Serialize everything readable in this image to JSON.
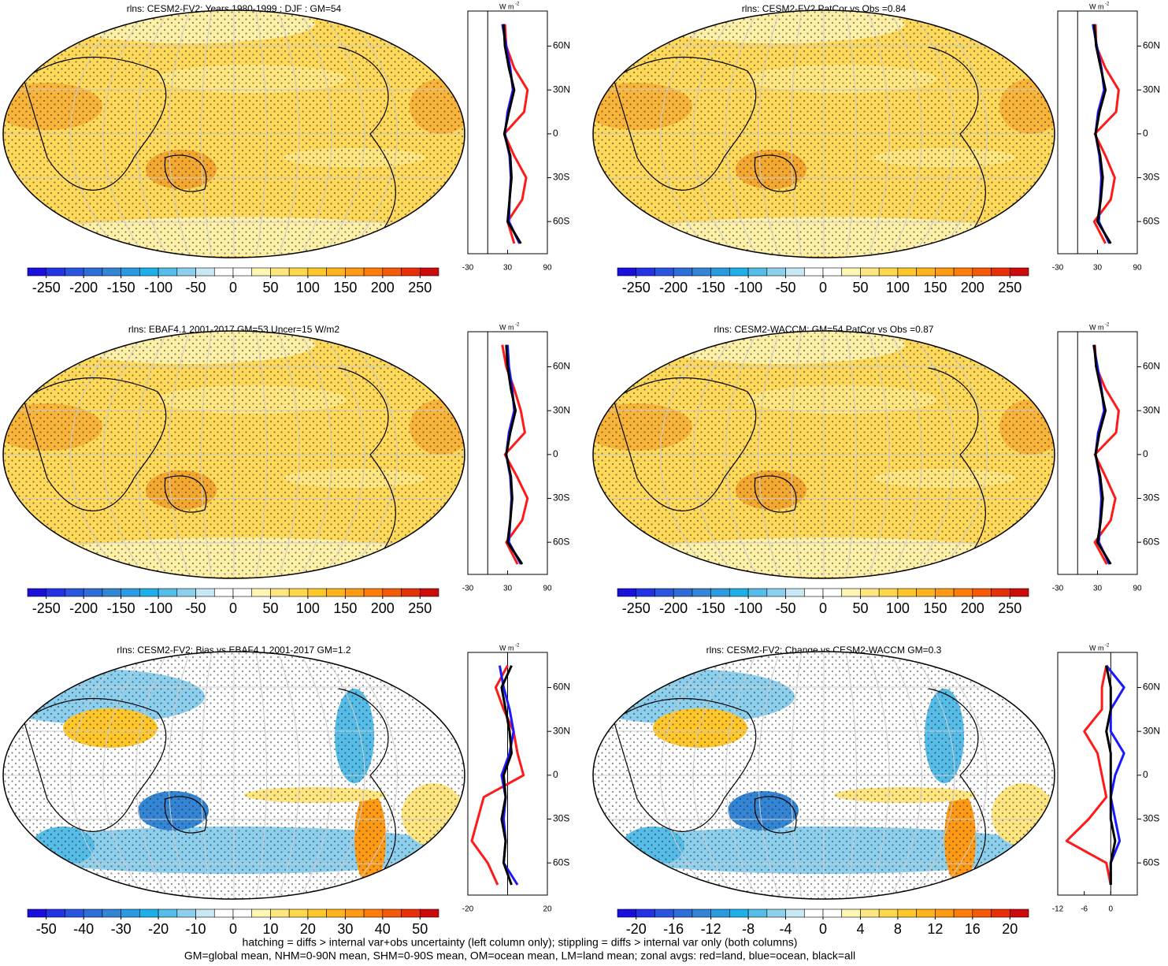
{
  "chart_data": [
    {
      "type": "map",
      "title": "rlns: CESM2-FV2: Years 1980-1999 : DJF : GM=54",
      "colorbar": {
        "lim": [
          -275,
          275
        ],
        "ticks": [
          -250,
          -200,
          -150,
          -100,
          -50,
          0,
          50,
          100,
          150,
          200,
          250
        ],
        "colors": [
          "#1a0fdc",
          "#2233e6",
          "#2a55e0",
          "#2e6ed8",
          "#3385d6",
          "#2a9be0",
          "#1eb0e8",
          "#55bde8",
          "#8cd0ee",
          "#c8e8f6",
          "#ffffff",
          "#ffffff",
          "#fff5b4",
          "#ffe680",
          "#ffd74a",
          "#ffc72a",
          "#ffb41e",
          "#ff9a14",
          "#ff7d0a",
          "#f55a08",
          "#e83008",
          "#cc0a0a"
        ]
      },
      "zonal": {
        "type": "line",
        "unit": "W m",
        "unit_exp": "-2",
        "xlim": [
          -30,
          90
        ],
        "xticks": [
          -30,
          30,
          90
        ],
        "ylim": [
          -82,
          84
        ],
        "yticks": [
          {
            "value": 60,
            "label": "60N"
          },
          {
            "value": 30,
            "label": "30N"
          },
          0,
          {
            "value": -30,
            "label": "30S"
          },
          {
            "value": -60,
            "label": "60S"
          }
        ],
        "lat": [
          -75,
          -60,
          -45,
          -30,
          -15,
          0,
          15,
          30,
          45,
          60,
          75
        ],
        "series": [
          {
            "name": "land",
            "color": "#ff1a1a",
            "values": [
              40,
              30,
              52,
              58,
              40,
              25,
              55,
              60,
              40,
              28,
              26
            ]
          },
          {
            "name": "ocean",
            "color": "#1a1aff",
            "values": [
              48,
              32,
              33,
              35,
              33,
              26,
              30,
              38,
              34,
              28,
              22
            ]
          },
          {
            "name": "all",
            "color": "#000000",
            "values": [
              50,
              30,
              33,
              36,
              34,
              25,
              32,
              40,
              32,
              26,
              24
            ]
          }
        ]
      }
    },
    {
      "type": "map",
      "title": "rlns: CESM2-FV2 PatCor vs Obs =0.84",
      "colorbar": {
        "lim": [
          -275,
          275
        ],
        "ticks": [
          -250,
          -200,
          -150,
          -100,
          -50,
          0,
          50,
          100,
          150,
          200,
          250
        ],
        "colors": [
          "#1a0fdc",
          "#2233e6",
          "#2a55e0",
          "#2e6ed8",
          "#3385d6",
          "#2a9be0",
          "#1eb0e8",
          "#55bde8",
          "#8cd0ee",
          "#c8e8f6",
          "#ffffff",
          "#ffffff",
          "#fff5b4",
          "#ffe680",
          "#ffd74a",
          "#ffc72a",
          "#ffb41e",
          "#ff9a14",
          "#ff7d0a",
          "#f55a08",
          "#e83008",
          "#cc0a0a"
        ]
      },
      "zonal": {
        "type": "line",
        "unit": "W m",
        "unit_exp": "-2",
        "xlim": [
          -30,
          90
        ],
        "xticks": [
          -30,
          30,
          90
        ],
        "ylim": [
          -82,
          84
        ],
        "yticks": [
          {
            "value": 60,
            "label": "60N"
          },
          {
            "value": 30,
            "label": "30N"
          },
          0,
          {
            "value": -30,
            "label": "30S"
          },
          {
            "value": -60,
            "label": "60S"
          }
        ],
        "lat": [
          -75,
          -60,
          -45,
          -30,
          -15,
          0,
          15,
          30,
          45,
          60,
          75
        ],
        "series": [
          {
            "name": "land",
            "color": "#ff1a1a",
            "values": [
              42,
              25,
              50,
              56,
              42,
              26,
              58,
              62,
              42,
              28,
              27
            ]
          },
          {
            "name": "ocean",
            "color": "#1a1aff",
            "values": [
              48,
              32,
              34,
              36,
              33,
              27,
              31,
              40,
              36,
              29,
              23
            ]
          },
          {
            "name": "all",
            "color": "#000000",
            "values": [
              50,
              30,
              35,
              38,
              34,
              27,
              33,
              42,
              35,
              28,
              25
            ]
          }
        ]
      }
    },
    {
      "type": "map",
      "title": "rlns: EBAF4.1 2001-2017 GM=53 Uncer=15 W/m2",
      "colorbar": {
        "lim": [
          -275,
          275
        ],
        "ticks": [
          -250,
          -200,
          -150,
          -100,
          -50,
          0,
          50,
          100,
          150,
          200,
          250
        ],
        "colors": [
          "#1a0fdc",
          "#2233e6",
          "#2a55e0",
          "#2e6ed8",
          "#3385d6",
          "#2a9be0",
          "#1eb0e8",
          "#55bde8",
          "#8cd0ee",
          "#c8e8f6",
          "#ffffff",
          "#ffffff",
          "#fff5b4",
          "#ffe680",
          "#ffd74a",
          "#ffc72a",
          "#ffb41e",
          "#ff9a14",
          "#ff7d0a",
          "#f55a08",
          "#e83008",
          "#cc0a0a"
        ]
      },
      "zonal": {
        "type": "line",
        "unit": "W m",
        "unit_exp": "-2",
        "xlim": [
          -30,
          90
        ],
        "xticks": [
          -30,
          30,
          90
        ],
        "ylim": [
          -82,
          84
        ],
        "yticks": [
          {
            "value": 60,
            "label": "60N"
          },
          {
            "value": 30,
            "label": "30N"
          },
          0,
          {
            "value": -30,
            "label": "30S"
          },
          {
            "value": -60,
            "label": "60S"
          }
        ],
        "lat": [
          -75,
          -60,
          -45,
          -30,
          -15,
          0,
          15,
          30,
          45,
          60,
          75
        ],
        "series": [
          {
            "name": "land",
            "color": "#ff1a1a",
            "values": [
              45,
              28,
              52,
              60,
              44,
              26,
              56,
              50,
              40,
              28,
              22
            ]
          },
          {
            "name": "ocean",
            "color": "#1a1aff",
            "values": [
              50,
              32,
              34,
              36,
              34,
              28,
              32,
              40,
              37,
              32,
              30
            ]
          },
          {
            "name": "all",
            "color": "#000000",
            "values": [
              52,
              30,
              34,
              37,
              35,
              28,
              34,
              42,
              35,
              30,
              28
            ]
          }
        ]
      }
    },
    {
      "type": "map",
      "title": "rlns: CESM2-WACCM: GM=54 PatCor vs Obs =0.87",
      "colorbar": {
        "lim": [
          -275,
          275
        ],
        "ticks": [
          -250,
          -200,
          -150,
          -100,
          -50,
          0,
          50,
          100,
          150,
          200,
          250
        ],
        "colors": [
          "#1a0fdc",
          "#2233e6",
          "#2a55e0",
          "#2e6ed8",
          "#3385d6",
          "#2a9be0",
          "#1eb0e8",
          "#55bde8",
          "#8cd0ee",
          "#c8e8f6",
          "#ffffff",
          "#ffffff",
          "#fff5b4",
          "#ffe680",
          "#ffd74a",
          "#ffc72a",
          "#ffb41e",
          "#ff9a14",
          "#ff7d0a",
          "#f55a08",
          "#e83008",
          "#cc0a0a"
        ]
      },
      "zonal": {
        "type": "line",
        "unit": "W m",
        "unit_exp": "-2",
        "xlim": [
          -30,
          90
        ],
        "xticks": [
          -30,
          30,
          90
        ],
        "ylim": [
          -82,
          84
        ],
        "yticks": [
          {
            "value": 60,
            "label": "60N"
          },
          {
            "value": 30,
            "label": "30N"
          },
          0,
          {
            "value": -30,
            "label": "30S"
          },
          {
            "value": -60,
            "label": "60S"
          }
        ],
        "lat": [
          -75,
          -60,
          -45,
          -30,
          -15,
          0,
          15,
          30,
          45,
          60,
          75
        ],
        "series": [
          {
            "name": "land",
            "color": "#ff1a1a",
            "values": [
              44,
              26,
              50,
              57,
              42,
              26,
              58,
              62,
              42,
              28,
              26
            ]
          },
          {
            "name": "ocean",
            "color": "#1a1aff",
            "values": [
              48,
              32,
              34,
              36,
              33,
              27,
              31,
              40,
              36,
              30,
              24
            ]
          },
          {
            "name": "all",
            "color": "#000000",
            "values": [
              50,
              30,
              35,
              38,
              34,
              27,
              33,
              42,
              35,
              28,
              25
            ]
          }
        ]
      }
    },
    {
      "type": "map",
      "title": "rlns: CESM2-FV2: Bias vs EBAF4.1 2001-2017 GM=1.2",
      "colorbar": {
        "lim": [
          -55,
          55
        ],
        "ticks": [
          -50,
          -40,
          -30,
          -20,
          -10,
          0,
          10,
          20,
          30,
          40,
          50
        ],
        "colors": [
          "#1a0fdc",
          "#2233e6",
          "#2a55e0",
          "#2e6ed8",
          "#3385d6",
          "#2a9be0",
          "#1eb0e8",
          "#55bde8",
          "#8cd0ee",
          "#c8e8f6",
          "#ffffff",
          "#ffffff",
          "#fff5b4",
          "#ffe680",
          "#ffd74a",
          "#ffc72a",
          "#ffb41e",
          "#ff9a14",
          "#ff7d0a",
          "#f55a08",
          "#e83008",
          "#cc0a0a"
        ]
      },
      "zonal": {
        "type": "line",
        "unit": "W m",
        "unit_exp": "-2",
        "xlim": [
          -20,
          20
        ],
        "xticks": [
          -20,
          20
        ],
        "ylim": [
          -82,
          84
        ],
        "yticks": [
          {
            "value": 60,
            "label": "60N"
          },
          {
            "value": 30,
            "label": "30N"
          },
          0,
          {
            "value": -30,
            "label": "30S"
          },
          {
            "value": -60,
            "label": "60S"
          }
        ],
        "lat": [
          -75,
          -60,
          -45,
          -30,
          -15,
          0,
          15,
          30,
          45,
          60,
          75
        ],
        "series": [
          {
            "name": "land",
            "color": "#ff1a1a",
            "values": [
              -5,
              -10,
              -18,
              -15,
              -12,
              8,
              5,
              3,
              -2,
              -6,
              0
            ]
          },
          {
            "name": "ocean",
            "color": "#1a1aff",
            "values": [
              5,
              -2,
              -1,
              -2,
              -1,
              -3,
              1,
              3,
              1,
              -2,
              -4
            ]
          },
          {
            "name": "all",
            "color": "#000000",
            "values": [
              2,
              -2,
              -1,
              -3,
              -1,
              -2,
              2,
              1,
              -1,
              -3,
              2
            ]
          }
        ]
      }
    },
    {
      "type": "map",
      "title": "rlns: CESM2-FV2: Change vs CESM2-WACCM GM=0.3",
      "colorbar": {
        "lim": [
          -22,
          22
        ],
        "ticks": [
          -20,
          -16,
          -12,
          -8,
          -4,
          0,
          4,
          8,
          12,
          16,
          20
        ],
        "colors": [
          "#1a0fdc",
          "#2233e6",
          "#2a55e0",
          "#2e6ed8",
          "#3385d6",
          "#2a9be0",
          "#1eb0e8",
          "#55bde8",
          "#8cd0ee",
          "#c8e8f6",
          "#ffffff",
          "#ffffff",
          "#fff5b4",
          "#ffe680",
          "#ffd74a",
          "#ffc72a",
          "#ffb41e",
          "#ff9a14",
          "#ff7d0a",
          "#f55a08",
          "#e83008",
          "#cc0a0a"
        ]
      },
      "zonal": {
        "type": "line",
        "unit": "W m",
        "unit_exp": "-2",
        "xlim": [
          -12,
          6
        ],
        "xticks": [
          -12,
          -6,
          0
        ],
        "ylim": [
          -82,
          84
        ],
        "yticks": [
          {
            "value": 60,
            "label": "60N"
          },
          {
            "value": 30,
            "label": "30N"
          },
          0,
          {
            "value": -30,
            "label": "30S"
          },
          {
            "value": -60,
            "label": "60S"
          }
        ],
        "lat": [
          -75,
          -60,
          -45,
          -30,
          -15,
          0,
          15,
          30,
          45,
          60,
          75
        ],
        "series": [
          {
            "name": "land",
            "color": "#ff1a1a",
            "values": [
              0,
              -1,
              -10,
              -5,
              -1,
              -2,
              -3,
              -6,
              -2,
              -2,
              -1
            ]
          },
          {
            "name": "ocean",
            "color": "#1a1aff",
            "values": [
              0,
              0,
              2,
              1,
              0,
              1,
              3,
              0,
              0,
              3,
              -1
            ]
          },
          {
            "name": "all",
            "color": "#000000",
            "values": [
              0,
              0,
              1,
              0,
              0,
              0,
              0,
              -1,
              0,
              0,
              -1
            ]
          }
        ]
      }
    }
  ],
  "footer": [
    "hatching = diffs > internal var+obs uncertainty (left column only); stippling = diffs > internal var only (both columns)",
    "GM=global mean, NHM=0-90N mean, SHM=0-90S mean, OM=ocean mean, LM=land mean; zonal avgs: red=land, blue=ocean, black=all"
  ]
}
